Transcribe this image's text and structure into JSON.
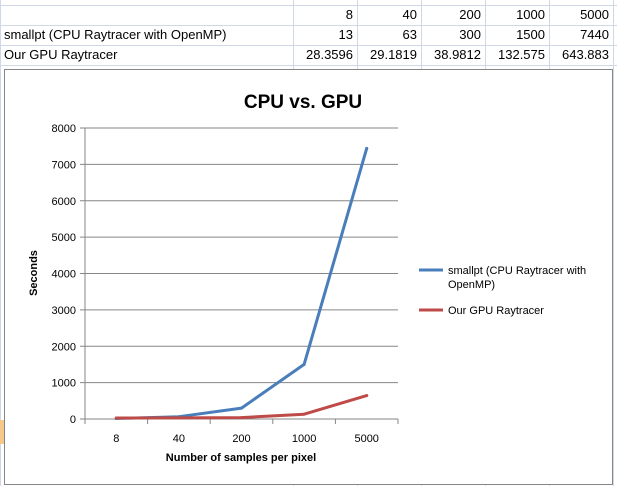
{
  "table": {
    "header": [
      "",
      "8",
      "40",
      "200",
      "1000",
      "5000"
    ],
    "rows": [
      {
        "label": "smallpt (CPU Raytracer with OpenMP)",
        "values": [
          "13",
          "63",
          "300",
          "1500",
          "7440"
        ]
      },
      {
        "label": "Our GPU Raytracer",
        "values": [
          "28.3596",
          "29.1819",
          "38.9812",
          "132.575",
          "643.883"
        ]
      }
    ]
  },
  "colors": {
    "series_cpu": "#4a7ebb",
    "series_gpu": "#be4b48",
    "gridline": "#868686",
    "sheet_grid": "#d0d7e5"
  },
  "chart_data": {
    "type": "line",
    "title": "CPU vs. GPU",
    "xlabel": "Number of samples per pixel",
    "ylabel": "Seconds",
    "categories": [
      "8",
      "40",
      "200",
      "1000",
      "5000"
    ],
    "ylim": [
      0,
      8000
    ],
    "yticks": [
      "0",
      "1000",
      "2000",
      "3000",
      "4000",
      "5000",
      "6000",
      "7000",
      "8000"
    ],
    "grid": true,
    "legend_position": "right",
    "series": [
      {
        "name": "smallpt (CPU Raytracer with OpenMP)",
        "values": [
          13,
          63,
          300,
          1500,
          7440
        ],
        "color": "#4a7ebb"
      },
      {
        "name": "Our GPU Raytracer",
        "values": [
          28.3596,
          29.1819,
          38.9812,
          132.575,
          643.883
        ],
        "color": "#be4b48"
      }
    ]
  }
}
